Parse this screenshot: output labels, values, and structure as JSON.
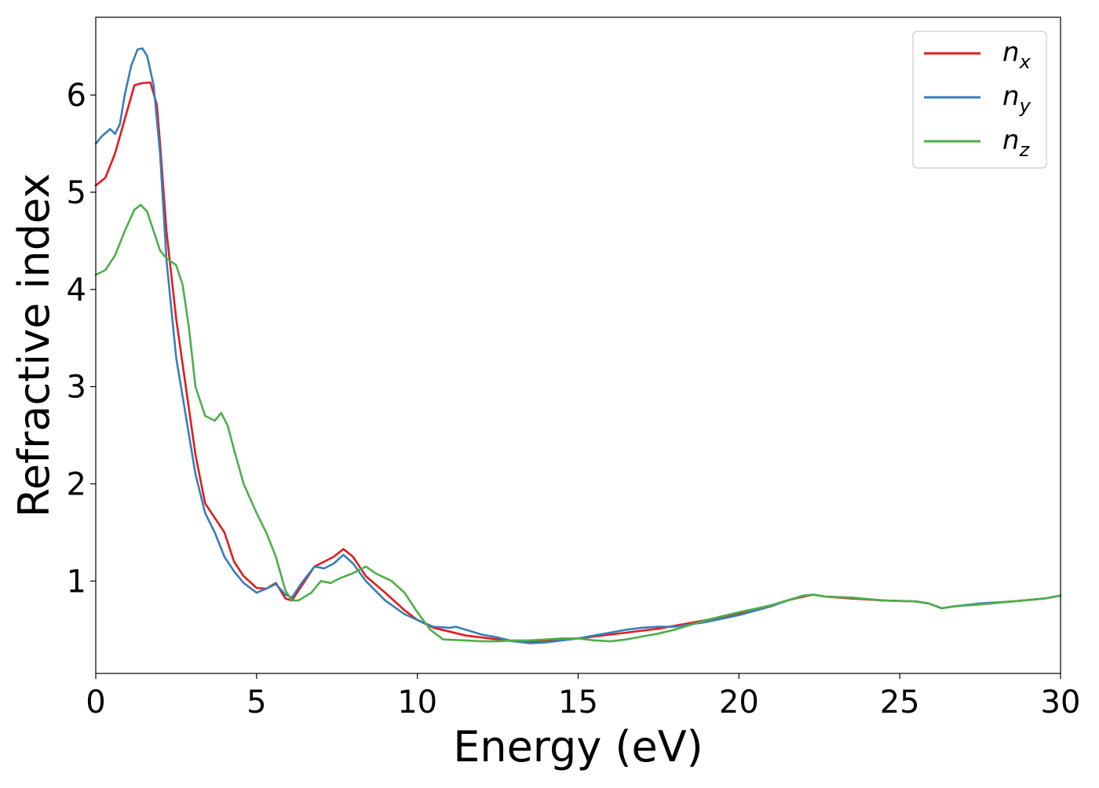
{
  "chart_data": {
    "type": "line",
    "title": "",
    "xlabel": "Energy (eV)",
    "ylabel": "Refractive index",
    "xlim": [
      0,
      30
    ],
    "ylim": [
      0.05,
      6.8
    ],
    "x_ticks": [
      0,
      5,
      10,
      15,
      20,
      25,
      30
    ],
    "y_ticks": [
      1,
      2,
      3,
      4,
      5,
      6
    ],
    "grid": false,
    "legend_position": "top-right",
    "series": [
      {
        "name": "n",
        "subscript": "x",
        "color": "#e41a1c",
        "x": [
          0,
          0.3,
          0.6,
          0.9,
          1.2,
          1.4,
          1.7,
          1.9,
          2.0,
          2.2,
          2.5,
          2.8,
          3.1,
          3.4,
          3.7,
          4.0,
          4.3,
          4.6,
          5.0,
          5.3,
          5.6,
          5.9,
          6.1,
          6.4,
          6.8,
          7.1,
          7.4,
          7.7,
          8.0,
          8.4,
          9.0,
          9.6,
          10.0,
          10.5,
          11.0,
          11.5,
          12.0,
          12.5,
          13.0,
          13.5,
          14.0,
          14.5,
          15.0,
          15.5,
          16.0,
          16.5,
          17.0,
          17.5,
          18.0,
          19.0,
          20.0,
          21.0,
          21.5,
          22.0,
          22.3,
          22.7,
          23.5,
          24.5,
          25.5,
          25.9,
          26.3,
          26.7,
          27.5,
          28.5,
          29.5,
          30.0
        ],
        "y": [
          5.07,
          5.15,
          5.4,
          5.75,
          6.1,
          6.12,
          6.13,
          5.9,
          5.5,
          4.6,
          3.7,
          3.0,
          2.3,
          1.8,
          1.65,
          1.5,
          1.2,
          1.05,
          0.93,
          0.92,
          0.98,
          0.82,
          0.8,
          0.95,
          1.15,
          1.2,
          1.25,
          1.33,
          1.25,
          1.05,
          0.88,
          0.7,
          0.6,
          0.52,
          0.48,
          0.44,
          0.42,
          0.4,
          0.38,
          0.37,
          0.39,
          0.4,
          0.41,
          0.43,
          0.45,
          0.47,
          0.49,
          0.51,
          0.54,
          0.6,
          0.67,
          0.75,
          0.8,
          0.84,
          0.86,
          0.84,
          0.82,
          0.8,
          0.79,
          0.77,
          0.72,
          0.74,
          0.76,
          0.79,
          0.82,
          0.85
        ]
      },
      {
        "name": "n",
        "subscript": "y",
        "color": "#377eb8",
        "x": [
          0,
          0.2,
          0.45,
          0.6,
          0.75,
          0.9,
          1.1,
          1.3,
          1.45,
          1.6,
          1.8,
          2.0,
          2.2,
          2.5,
          2.8,
          3.1,
          3.4,
          3.7,
          4.0,
          4.3,
          4.6,
          5.0,
          5.3,
          5.6,
          5.9,
          6.1,
          6.4,
          6.8,
          7.1,
          7.4,
          7.7,
          8.0,
          8.4,
          9.0,
          9.6,
          10.0,
          10.5,
          11.0,
          11.2,
          11.5,
          12.0,
          12.5,
          13.0,
          13.5,
          14.0,
          14.5,
          15.0,
          15.5,
          16.0,
          16.5,
          17.0,
          17.5,
          18.0,
          19.0,
          20.0,
          21.0,
          21.5,
          22.0,
          22.3,
          22.7,
          23.5,
          24.5,
          25.5,
          25.9,
          26.3,
          26.7,
          27.5,
          28.5,
          29.5,
          30.0
        ],
        "y": [
          5.5,
          5.58,
          5.65,
          5.6,
          5.7,
          6.0,
          6.3,
          6.47,
          6.48,
          6.4,
          6.1,
          5.4,
          4.3,
          3.3,
          2.7,
          2.1,
          1.7,
          1.5,
          1.25,
          1.1,
          0.98,
          0.88,
          0.92,
          0.97,
          0.86,
          0.83,
          0.98,
          1.15,
          1.13,
          1.18,
          1.27,
          1.18,
          1.0,
          0.8,
          0.66,
          0.6,
          0.53,
          0.52,
          0.53,
          0.5,
          0.45,
          0.42,
          0.38,
          0.36,
          0.37,
          0.39,
          0.41,
          0.44,
          0.47,
          0.5,
          0.52,
          0.53,
          0.53,
          0.58,
          0.65,
          0.74,
          0.8,
          0.85,
          0.86,
          0.84,
          0.83,
          0.8,
          0.79,
          0.77,
          0.72,
          0.74,
          0.77,
          0.79,
          0.82,
          0.85
        ]
      },
      {
        "name": "n",
        "subscript": "z",
        "color": "#4daf4a",
        "x": [
          0,
          0.3,
          0.6,
          0.9,
          1.2,
          1.4,
          1.6,
          1.8,
          2.0,
          2.2,
          2.5,
          2.7,
          2.9,
          3.1,
          3.4,
          3.7,
          3.9,
          4.1,
          4.3,
          4.6,
          5.0,
          5.3,
          5.6,
          5.9,
          6.1,
          6.3,
          6.7,
          7.0,
          7.3,
          7.6,
          8.0,
          8.4,
          8.7,
          9.2,
          9.6,
          10.0,
          10.4,
          10.8,
          11.5,
          12.0,
          12.5,
          13.0,
          13.5,
          14.0,
          14.5,
          15.0,
          15.5,
          16.0,
          16.5,
          17.0,
          17.5,
          18.0,
          18.5,
          19.0,
          20.0,
          21.0,
          21.5,
          22.0,
          22.3,
          22.7,
          23.5,
          24.5,
          25.5,
          25.9,
          26.3,
          26.7,
          27.5,
          28.5,
          29.5,
          30.0
        ],
        "y": [
          4.15,
          4.2,
          4.35,
          4.6,
          4.82,
          4.87,
          4.8,
          4.6,
          4.4,
          4.32,
          4.25,
          4.05,
          3.6,
          3.0,
          2.7,
          2.65,
          2.73,
          2.6,
          2.35,
          2.0,
          1.7,
          1.5,
          1.25,
          0.9,
          0.8,
          0.8,
          0.88,
          1.0,
          0.98,
          1.03,
          1.08,
          1.15,
          1.08,
          1.0,
          0.88,
          0.68,
          0.5,
          0.4,
          0.39,
          0.38,
          0.38,
          0.39,
          0.39,
          0.4,
          0.41,
          0.41,
          0.39,
          0.38,
          0.4,
          0.43,
          0.46,
          0.5,
          0.55,
          0.6,
          0.68,
          0.75,
          0.8,
          0.85,
          0.86,
          0.84,
          0.83,
          0.8,
          0.79,
          0.77,
          0.72,
          0.74,
          0.76,
          0.79,
          0.82,
          0.85
        ]
      }
    ]
  }
}
